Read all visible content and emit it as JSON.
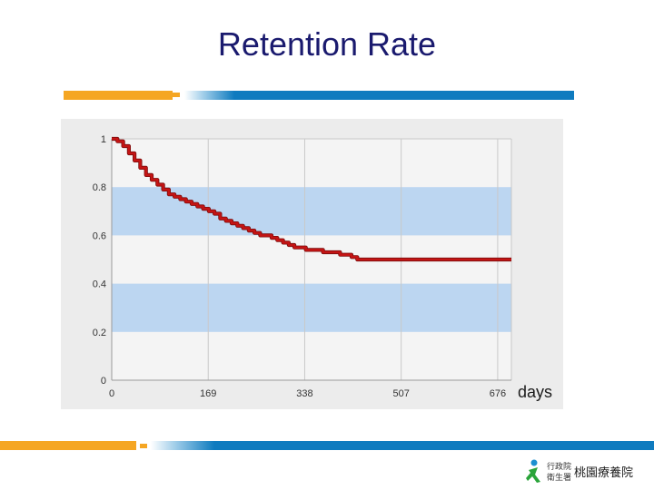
{
  "slide": {
    "title": "Retention Rate"
  },
  "colors": {
    "title": "#1a1a6e",
    "band_orange": "#f5a623",
    "band_blue": "#0f7bbf",
    "curve": "#c41414",
    "stripe_fill": "#bcd6f1",
    "grid": "#c9c9c9"
  },
  "logo": {
    "line1": "行政院",
    "line2": "衛生署",
    "name": "桃園療養院"
  },
  "chart_data": {
    "type": "line",
    "xunit": "days",
    "xlim": [
      0,
      700
    ],
    "ylim": [
      0,
      1
    ],
    "xticks": [
      0,
      169,
      338,
      507,
      676
    ],
    "yticks": [
      0,
      0.2,
      0.4,
      0.6,
      0.8,
      1
    ],
    "xtick_labels": [
      "0",
      "169",
      "338",
      "507",
      "676"
    ],
    "ytick_labels": [
      "0",
      "0.2",
      "0.4",
      "0.6",
      "0.8",
      "1"
    ],
    "shaded_bands": [
      [
        0.2,
        0.4
      ],
      [
        0.6,
        0.8
      ]
    ],
    "grid": true,
    "series": [
      {
        "x": [
          0,
          10,
          20,
          30,
          40,
          50,
          60,
          70,
          80,
          90,
          100,
          110,
          120,
          130,
          140,
          150,
          160,
          170,
          180,
          190,
          200,
          210,
          220,
          230,
          240,
          250,
          260,
          270,
          280,
          290,
          300,
          310,
          320,
          330,
          340,
          350,
          360,
          370,
          380,
          390,
          400,
          410,
          420,
          430,
          440,
          700
        ],
        "y": [
          1.0,
          0.99,
          0.97,
          0.94,
          0.91,
          0.88,
          0.85,
          0.83,
          0.81,
          0.79,
          0.77,
          0.76,
          0.75,
          0.74,
          0.73,
          0.72,
          0.71,
          0.7,
          0.69,
          0.67,
          0.66,
          0.65,
          0.64,
          0.63,
          0.62,
          0.61,
          0.6,
          0.6,
          0.59,
          0.58,
          0.57,
          0.56,
          0.55,
          0.55,
          0.54,
          0.54,
          0.54,
          0.53,
          0.53,
          0.53,
          0.52,
          0.52,
          0.51,
          0.5,
          0.5,
          0.5
        ]
      }
    ]
  }
}
